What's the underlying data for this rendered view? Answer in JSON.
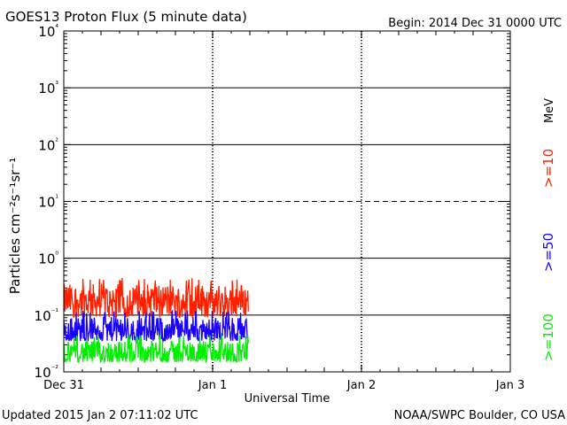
{
  "title": "GOES13 Proton Flux (5 minute data)",
  "begin_label": "Begin: 2014 Dec 31 0000 UTC",
  "updated_label": "Updated 2015 Jan  2 07:11:02 UTC",
  "credit_label": "NOAA/SWPC Boulder, CO USA",
  "colors": {
    "ge10": "#ff2000",
    "ge50": "#1a00ff",
    "ge100": "#00ee00",
    "axes": "#000000"
  },
  "chart_data": {
    "type": "line",
    "title": "GOES13 Proton Flux (5 minute data)",
    "xlabel": "Universal Time",
    "ylabel": "Particles cm⁻²s⁻¹sr⁻¹",
    "yscale": "log",
    "ylim": [
      0.01,
      10000
    ],
    "xlim_days": [
      0,
      3
    ],
    "x_tick_labels": [
      "Dec 31",
      "Jan 1",
      "Jan 2",
      "Jan 3"
    ],
    "y_tick_labels": [
      "10⁻²",
      "10⁻¹",
      "10⁰",
      "10¹",
      "10²",
      "10³",
      "10⁴"
    ],
    "units_label": "MeV",
    "grid": "horizontal per decade (10¹ dashed), dashed day markers",
    "series": [
      {
        "name": ">=10",
        "color": "#ff2000",
        "x_range_days": [
          0,
          1.24
        ],
        "y_range": [
          0.09,
          0.45
        ],
        "typical": 0.18
      },
      {
        "name": ">=50",
        "color": "#1a00ff",
        "x_range_days": [
          0,
          1.24
        ],
        "y_range": [
          0.035,
          0.12
        ],
        "typical": 0.055
      },
      {
        "name": ">=100",
        "color": "#00ee00",
        "x_range_days": [
          0,
          1.24
        ],
        "y_range": [
          0.015,
          0.045
        ],
        "typical": 0.022
      }
    ]
  }
}
